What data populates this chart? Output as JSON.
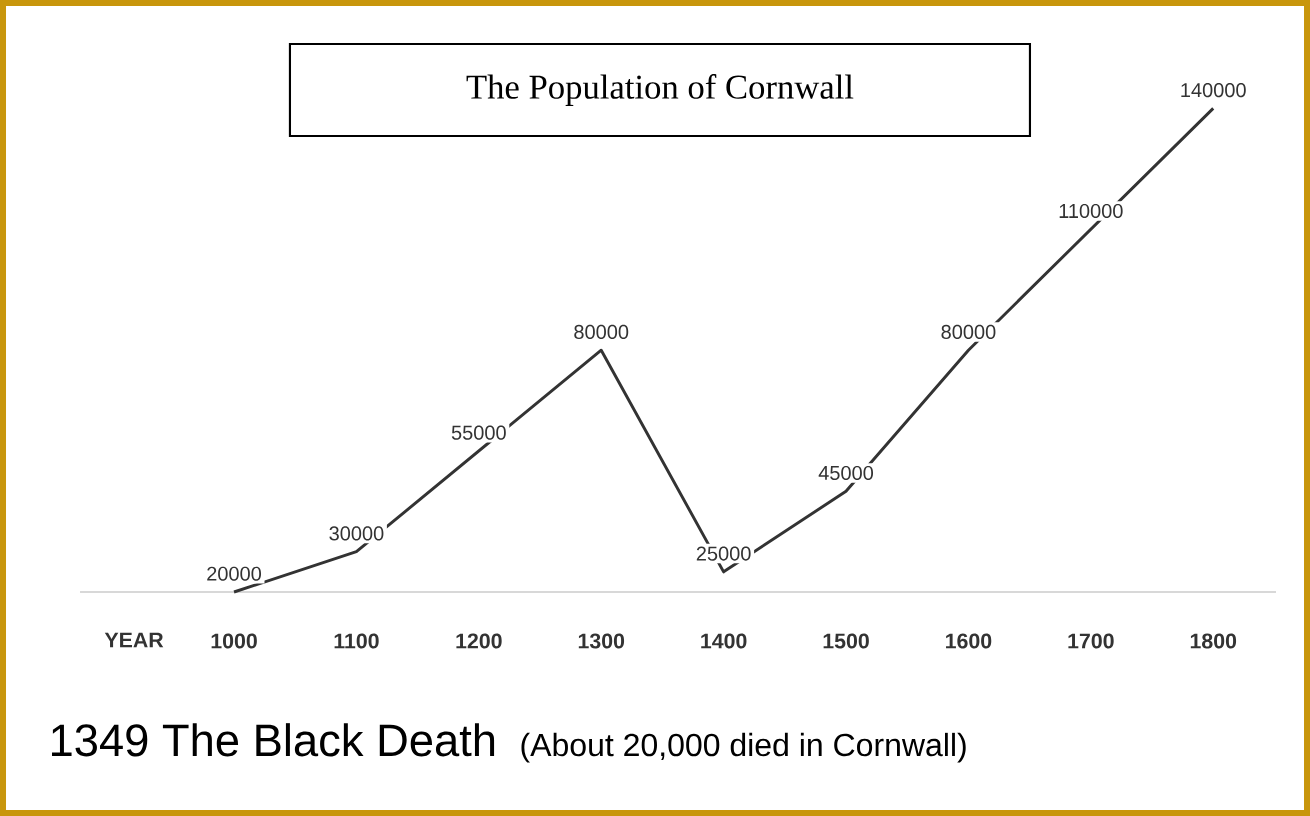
{
  "chart_data": {
    "type": "line",
    "title": "The Population of Cornwall",
    "xlabel": "YEAR",
    "categories": [
      "1000",
      "1100",
      "1200",
      "1300",
      "1400",
      "1500",
      "1600",
      "1700",
      "1800"
    ],
    "series": [
      {
        "color": "#333333",
        "values": [
          20000,
          30000,
          55000,
          80000,
          25000,
          45000,
          80000,
          110000,
          140000
        ]
      }
    ],
    "data_labels": true,
    "tick_labels": "x",
    "annotations": [
      "1349  The Black Death",
      "(About 20,000 died in Cornwall)"
    ]
  }
}
